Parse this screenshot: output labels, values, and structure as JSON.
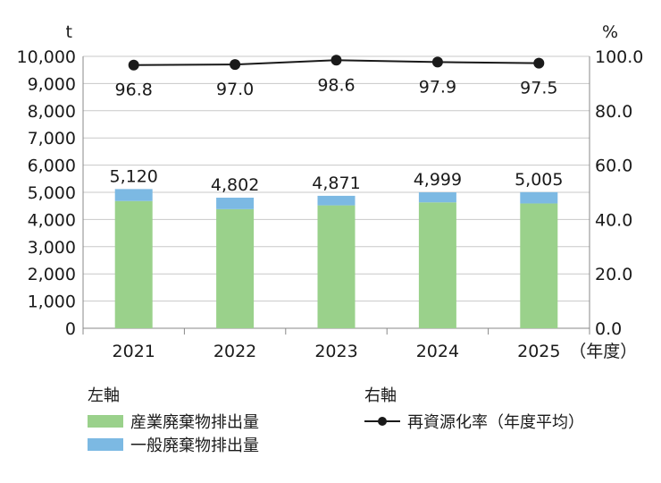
{
  "chart_data": {
    "type": "bar",
    "categories": [
      "2021",
      "2022",
      "2023",
      "2024",
      "2025"
    ],
    "x_unit": "（年度）",
    "y_left": {
      "unit": "t",
      "ylim": [
        0,
        10000
      ],
      "ticks": [
        "0",
        "1,000",
        "2,000",
        "3,000",
        "4,000",
        "5,000",
        "6,000",
        "7,000",
        "8,000",
        "9,000",
        "10,000"
      ]
    },
    "y_right": {
      "unit": "%",
      "ylim": [
        0,
        100
      ],
      "ticks": [
        "0.0",
        "20.0",
        "40.0",
        "60.0",
        "80.0",
        "100.0"
      ]
    },
    "series": [
      {
        "name": "産業廃棄物排出量",
        "type": "bar",
        "axis": "left",
        "color": "#9ad18b",
        "values": [
          4680,
          4380,
          4520,
          4630,
          4590
        ]
      },
      {
        "name": "一般廃棄物排出量",
        "type": "bar",
        "axis": "left",
        "color": "#7cb9e3",
        "values": [
          440,
          422,
          351,
          369,
          415
        ]
      },
      {
        "name": "再資源化率（年度平均）",
        "type": "line",
        "axis": "right",
        "color": "#1a1a1a",
        "values": [
          96.8,
          97.0,
          98.6,
          97.9,
          97.5
        ]
      }
    ],
    "bar_totals": [
      "5,120",
      "4,802",
      "4,871",
      "4,999",
      "5,005"
    ],
    "line_labels": [
      "96.8",
      "97.0",
      "98.6",
      "97.9",
      "97.5"
    ],
    "grid": true
  },
  "legend": {
    "left_title": "左軸",
    "right_title": "右軸",
    "items_left": [
      {
        "label": "産業廃棄物排出量",
        "color": "#9ad18b"
      },
      {
        "label": "一般廃棄物排出量",
        "color": "#7cb9e3"
      }
    ],
    "items_right": [
      {
        "label": "再資源化率（年度平均）",
        "color": "#1a1a1a"
      }
    ]
  }
}
